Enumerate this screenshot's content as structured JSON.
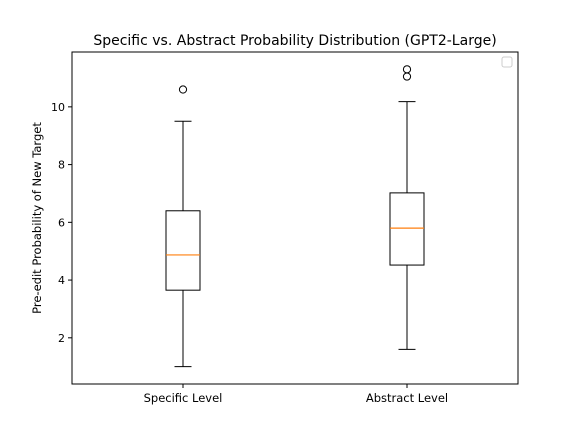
{
  "chart_data": {
    "type": "box",
    "title": "Specific vs. Abstract Probability Distribution (GPT2-Large)",
    "xlabel": "",
    "ylabel": "Pre-edit Probability of New Target",
    "ylim": [
      0.4,
      11.9
    ],
    "yticks": [
      2,
      4,
      6,
      8,
      10
    ],
    "categories": [
      "Specific Level",
      "Abstract Level"
    ],
    "boxes": [
      {
        "category": "Specific Level",
        "whislo": 1.0,
        "q1": 3.65,
        "med": 4.87,
        "q3": 6.4,
        "whishi": 9.5,
        "fliers": [
          10.6
        ]
      },
      {
        "category": "Abstract Level",
        "whislo": 1.6,
        "q1": 4.52,
        "med": 5.8,
        "q3": 7.02,
        "whishi": 10.18,
        "fliers": [
          11.05,
          11.3
        ]
      }
    ],
    "grid": false,
    "legend": "top-right (empty)",
    "colors": {
      "box": "#000000",
      "median": "#ff7f0e",
      "background": "#ffffff"
    }
  }
}
